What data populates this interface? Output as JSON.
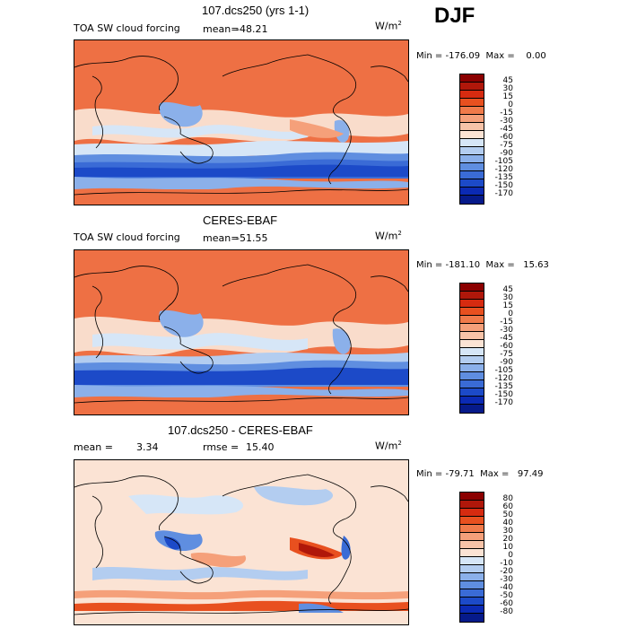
{
  "season": "DJF",
  "panels": [
    {
      "title": "107.dcs250 (yrs 1-1)",
      "left_label": "TOA SW cloud forcing",
      "mean_label": "mean=",
      "mean_value": "-48.21",
      "unit_base": "W/m",
      "unit_exp": "2",
      "min_label": "Min =",
      "min_value": "-176.09",
      "max_label": "Max =",
      "max_value": "0.00",
      "colorbar_levels": [
        "45",
        "30",
        "15",
        "0",
        "-15",
        "-30",
        "-45",
        "-60",
        "-75",
        "-90",
        "-105",
        "-120",
        "-135",
        "-150",
        "-170"
      ],
      "colorbar_colors": [
        "#8b0000",
        "#b0170a",
        "#d62b10",
        "#e8501f",
        "#f07a4a",
        "#f5a07a",
        "#f7c3a8",
        "#fbe3d4",
        "#d6e6f7",
        "#b3cdf0",
        "#8bb0ea",
        "#5f8ee0",
        "#3a6bd6",
        "#1c4ac8",
        "#0b2ab4",
        "#061a8a"
      ]
    },
    {
      "title": "CERES-EBAF",
      "left_label": "TOA SW cloud forcing",
      "mean_label": "mean=",
      "mean_value": "-51.55",
      "unit_base": "W/m",
      "unit_exp": "2",
      "min_label": "Min =",
      "min_value": "-181.10",
      "max_label": "Max =",
      "max_value": "15.63",
      "colorbar_levels": [
        "45",
        "30",
        "15",
        "0",
        "-15",
        "-30",
        "-45",
        "-60",
        "-75",
        "-90",
        "-105",
        "-120",
        "-135",
        "-150",
        "-170"
      ],
      "colorbar_colors": [
        "#8b0000",
        "#b0170a",
        "#d62b10",
        "#e8501f",
        "#f07a4a",
        "#f5a07a",
        "#f7c3a8",
        "#fbe3d4",
        "#d6e6f7",
        "#b3cdf0",
        "#8bb0ea",
        "#5f8ee0",
        "#3a6bd6",
        "#1c4ac8",
        "#0b2ab4",
        "#061a8a"
      ]
    },
    {
      "title": "107.dcs250 - CERES-EBAF",
      "left_label": "mean =",
      "mean_label": "",
      "mean_value": "3.34",
      "rmse_label": "rmse =",
      "rmse_value": "15.40",
      "unit_base": "W/m",
      "unit_exp": "2",
      "min_label": "Min =",
      "min_value": "-79.71",
      "max_label": "Max =",
      "max_value": "97.49",
      "colorbar_levels": [
        "80",
        "60",
        "50",
        "40",
        "30",
        "20",
        "10",
        "0",
        "-10",
        "-20",
        "-30",
        "-40",
        "-50",
        "-60",
        "-80"
      ],
      "colorbar_colors": [
        "#8b0000",
        "#b0170a",
        "#d62b10",
        "#e8501f",
        "#f07a4a",
        "#f5a07a",
        "#f7c3a8",
        "#fbe3d4",
        "#d6e6f7",
        "#b3cdf0",
        "#8bb0ea",
        "#5f8ee0",
        "#3a6bd6",
        "#1c4ac8",
        "#0b2ab4",
        "#061a8a"
      ]
    }
  ]
}
